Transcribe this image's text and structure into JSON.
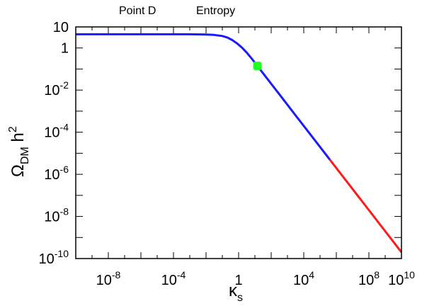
{
  "header": {
    "left_label": "Point D",
    "right_label": "Entropy"
  },
  "chart_data": {
    "type": "line",
    "x_scale": "log",
    "y_scale": "log",
    "xlim_log10": [
      -10,
      10
    ],
    "ylim_log10": [
      -10,
      1
    ],
    "xlabel": {
      "main": "κ",
      "sub": "s"
    },
    "ylabel": {
      "main": "Ω",
      "sub": "DM",
      "tail": " h",
      "sup": "2"
    },
    "x_ticks": [
      {
        "base": "10",
        "exp": "-8",
        "log": -8
      },
      {
        "base": "10",
        "exp": "-4",
        "log": -4
      },
      {
        "base": "1",
        "exp": "",
        "log": 0
      },
      {
        "base": "10",
        "exp": "4",
        "log": 4
      },
      {
        "base": "10",
        "exp": "8",
        "log": 8
      },
      {
        "base": "10",
        "exp": "10",
        "log": 10
      }
    ],
    "y_ticks": [
      {
        "base": "10",
        "exp": "",
        "log": 1
      },
      {
        "base": "1",
        "exp": "",
        "log": 0
      },
      {
        "base": "10",
        "exp": "-2",
        "log": -2
      },
      {
        "base": "10",
        "exp": "-4",
        "log": -4
      },
      {
        "base": "10",
        "exp": "-6",
        "log": -6
      },
      {
        "base": "10",
        "exp": "-8",
        "log": -8
      },
      {
        "base": "10",
        "exp": "-10",
        "log": -10
      }
    ],
    "series": [
      {
        "color": "#1a1aff",
        "log_x": [
          -10,
          -8,
          -6,
          -4,
          -3,
          -2,
          -1.5,
          -1,
          -0.7,
          -0.4,
          -0.1,
          0.2,
          0.5,
          0.8,
          1.0,
          1.2,
          1.4,
          1.8,
          2.5,
          3.5,
          4.5,
          5.6
        ],
        "log_y": [
          0.65,
          0.65,
          0.65,
          0.65,
          0.65,
          0.64,
          0.62,
          0.57,
          0.5,
          0.38,
          0.22,
          0.02,
          -0.22,
          -0.5,
          -0.7,
          -0.9,
          -1.1,
          -1.5,
          -2.2,
          -3.2,
          -4.2,
          -5.3
        ]
      },
      {
        "color": "#ff1a1a",
        "log_x": [
          5.6,
          7,
          8.5,
          10
        ],
        "log_y": [
          -5.3,
          -6.7,
          -8.2,
          -9.7
        ]
      }
    ],
    "marker": {
      "log_x": 1.15,
      "log_y": -0.85,
      "color": "#22ff22"
    }
  }
}
